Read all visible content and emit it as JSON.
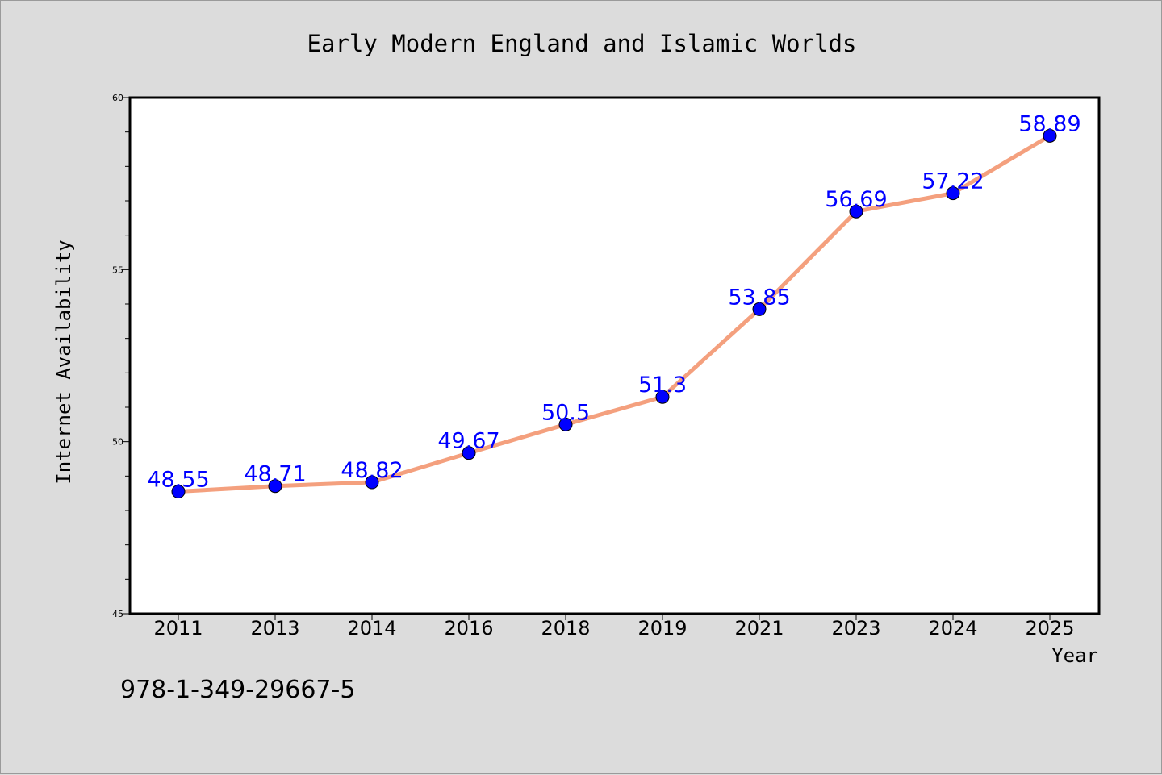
{
  "chart_data": {
    "type": "line",
    "title": "Early Modern England and Islamic Worlds",
    "xlabel": "Year",
    "ylabel": "Internet Availability",
    "categories": [
      "2011",
      "2013",
      "2014",
      "2016",
      "2018",
      "2019",
      "2021",
      "2023",
      "2024",
      "2025"
    ],
    "series": [
      {
        "values": [
          48.55,
          48.71,
          48.82,
          49.67,
          50.5,
          51.3,
          53.85,
          56.69,
          57.22,
          58.89
        ],
        "labels": [
          "48.55",
          "48.71",
          "48.82",
          "49.67",
          "50.5",
          "51.3",
          "53.85",
          "56.69",
          "57.22",
          "58.89"
        ]
      }
    ],
    "ylim": [
      45,
      60
    ],
    "yticks": [
      "45",
      "50",
      "55",
      "60"
    ],
    "grid": false,
    "colors": {
      "line": "#f4a07e",
      "marker": "#0000ff",
      "data_label": "#0000ff",
      "background": "#dcdcdc",
      "plot_area": "#ffffff"
    }
  },
  "annotation": "978-1-349-29667-5"
}
